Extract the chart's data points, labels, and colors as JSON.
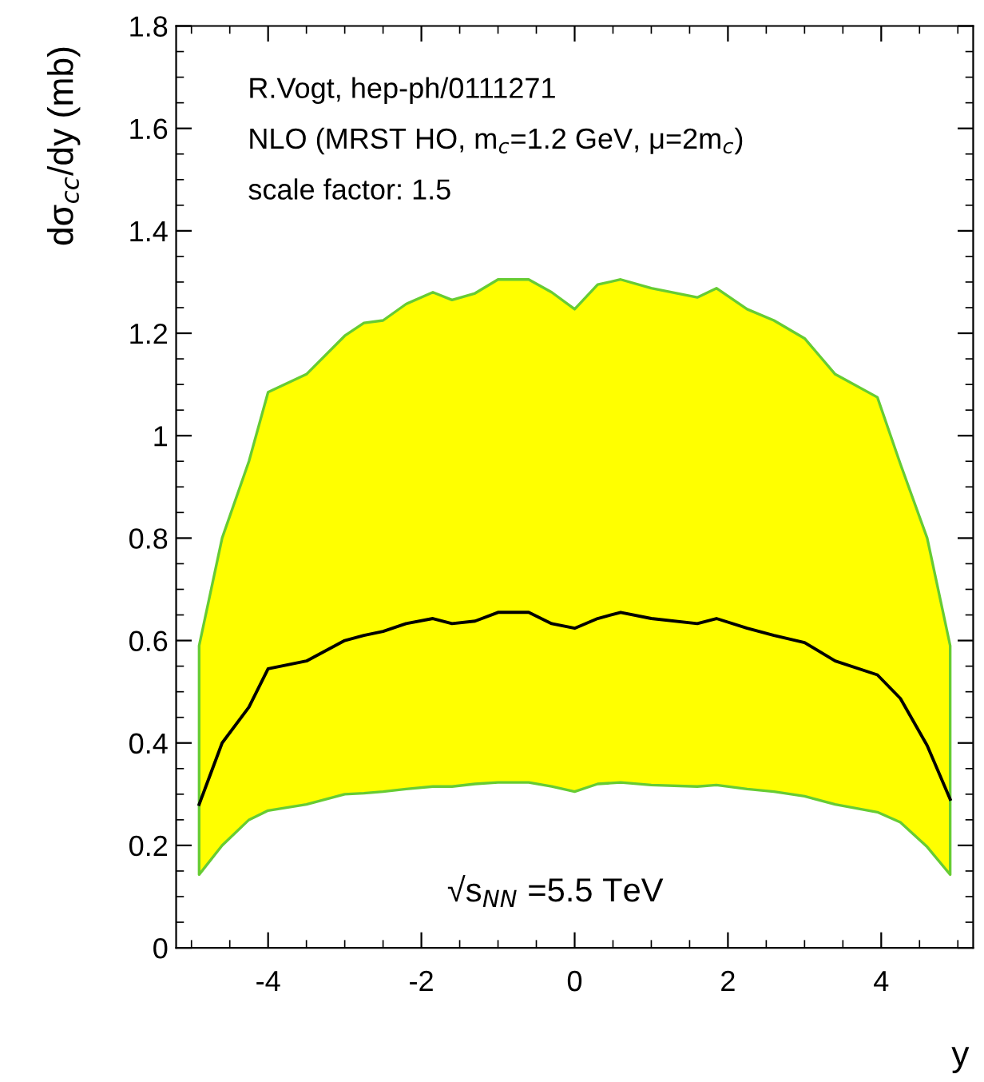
{
  "chart_data": {
    "type": "line",
    "ylabel": "dσ$_{cc}$/dy (mb)",
    "xlabel": "y",
    "annotations": [
      "R.Vogt, hep-ph/0111271",
      "NLO (MRST HO, m$_{c}$=1.2 GeV, μ=2m$_{c}$)",
      "scale factor: 1.5",
      "√s$_{NN}$ =5.5 TeV"
    ],
    "x": [
      -4.9,
      -4.6,
      -4.25,
      -4,
      -3.5,
      -3,
      -2.75,
      -2.5,
      -2.2,
      -1.85,
      -1.6,
      -1.3,
      -1,
      -0.6,
      -0.3,
      0,
      0.3,
      0.6,
      1,
      1.6,
      1.85,
      2.25,
      2.6,
      3,
      3.4,
      3.95,
      4.25,
      4.6,
      4.9
    ],
    "series": [
      {
        "color": "#000000",
        "values": [
          0.28,
          0.4,
          0.47,
          0.545,
          0.56,
          0.6,
          0.61,
          0.618,
          0.633,
          0.643,
          0.633,
          0.638,
          0.655,
          0.655,
          0.633,
          0.624,
          0.643,
          0.655,
          0.643,
          0.633,
          0.643,
          0.624,
          0.61,
          0.596,
          0.56,
          0.533,
          0.487,
          0.395,
          0.29
        ],
        "lower": [
          0.143,
          0.2,
          0.25,
          0.268,
          0.28,
          0.3,
          0.302,
          0.305,
          0.31,
          0.315,
          0.315,
          0.32,
          0.323,
          0.323,
          0.315,
          0.305,
          0.32,
          0.323,
          0.318,
          0.315,
          0.318,
          0.31,
          0.305,
          0.296,
          0.28,
          0.265,
          0.245,
          0.197,
          0.143
        ],
        "upper": [
          0.59,
          0.8,
          0.95,
          1.085,
          1.12,
          1.195,
          1.22,
          1.225,
          1.257,
          1.28,
          1.265,
          1.278,
          1.305,
          1.305,
          1.28,
          1.247,
          1.295,
          1.305,
          1.288,
          1.27,
          1.288,
          1.247,
          1.225,
          1.19,
          1.12,
          1.075,
          0.945,
          0.8,
          0.59
        ]
      }
    ],
    "xlim": [
      -5.2,
      5.2
    ],
    "xticks": [
      -4,
      -2,
      0,
      2,
      4
    ],
    "ylim": [
      0,
      1.8
    ],
    "yticks": [
      0,
      0.2,
      0.4,
      0.6,
      0.8,
      1,
      1.2,
      1.4,
      1.6,
      1.8
    ],
    "grid": false,
    "legend": false,
    "marker": "none",
    "line_style": "solid"
  }
}
